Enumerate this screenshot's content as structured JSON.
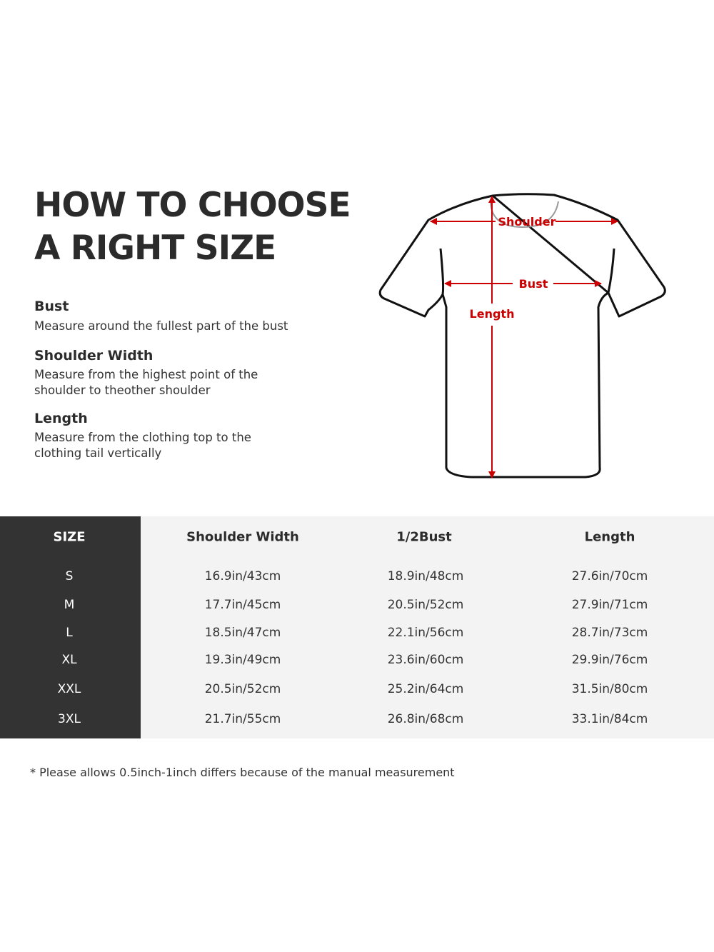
{
  "title": {
    "line1": "HOW TO CHOOSE",
    "line2": "A RIGHT SIZE"
  },
  "definitions": [
    {
      "heading": "Bust",
      "text": "Measure around the fullest part of the bust"
    },
    {
      "heading": "Shoulder Width",
      "text": "Measure from the highest point of the shoulder to theother shoulder"
    },
    {
      "heading": "Length",
      "text": "Measure from the clothing top to the clothing tail vertically"
    }
  ],
  "diagram": {
    "labels": {
      "shoulder": "Shoulder",
      "bust": "Bust",
      "length": "Length"
    },
    "arrow_color": "#cc0000",
    "outline_color": "#111111"
  },
  "size_table": {
    "headers": [
      "SIZE",
      "Shoulder Width",
      "1/2Bust",
      "Length"
    ],
    "rows": [
      [
        "S",
        "16.9in/43cm",
        "18.9in/48cm",
        "27.6in/70cm"
      ],
      [
        "M",
        "17.7in/45cm",
        "20.5in/52cm",
        "27.9in/71cm"
      ],
      [
        "L",
        "18.5in/47cm",
        "22.1in/56cm",
        "28.7in/73cm"
      ],
      [
        "XL",
        "19.3in/49cm",
        "23.6in/60cm",
        "29.9in/76cm"
      ],
      [
        "XXL",
        "20.5in/52cm",
        "25.2in/64cm",
        "31.5in/80cm"
      ],
      [
        "3XL",
        "21.7in/55cm",
        "26.8in/68cm",
        "33.1in/84cm"
      ]
    ],
    "colors": {
      "size_column": "#333333",
      "body": "#f3f3f3"
    }
  },
  "note": "* Please allows 0.5inch-1inch differs because of the  manual measurement"
}
